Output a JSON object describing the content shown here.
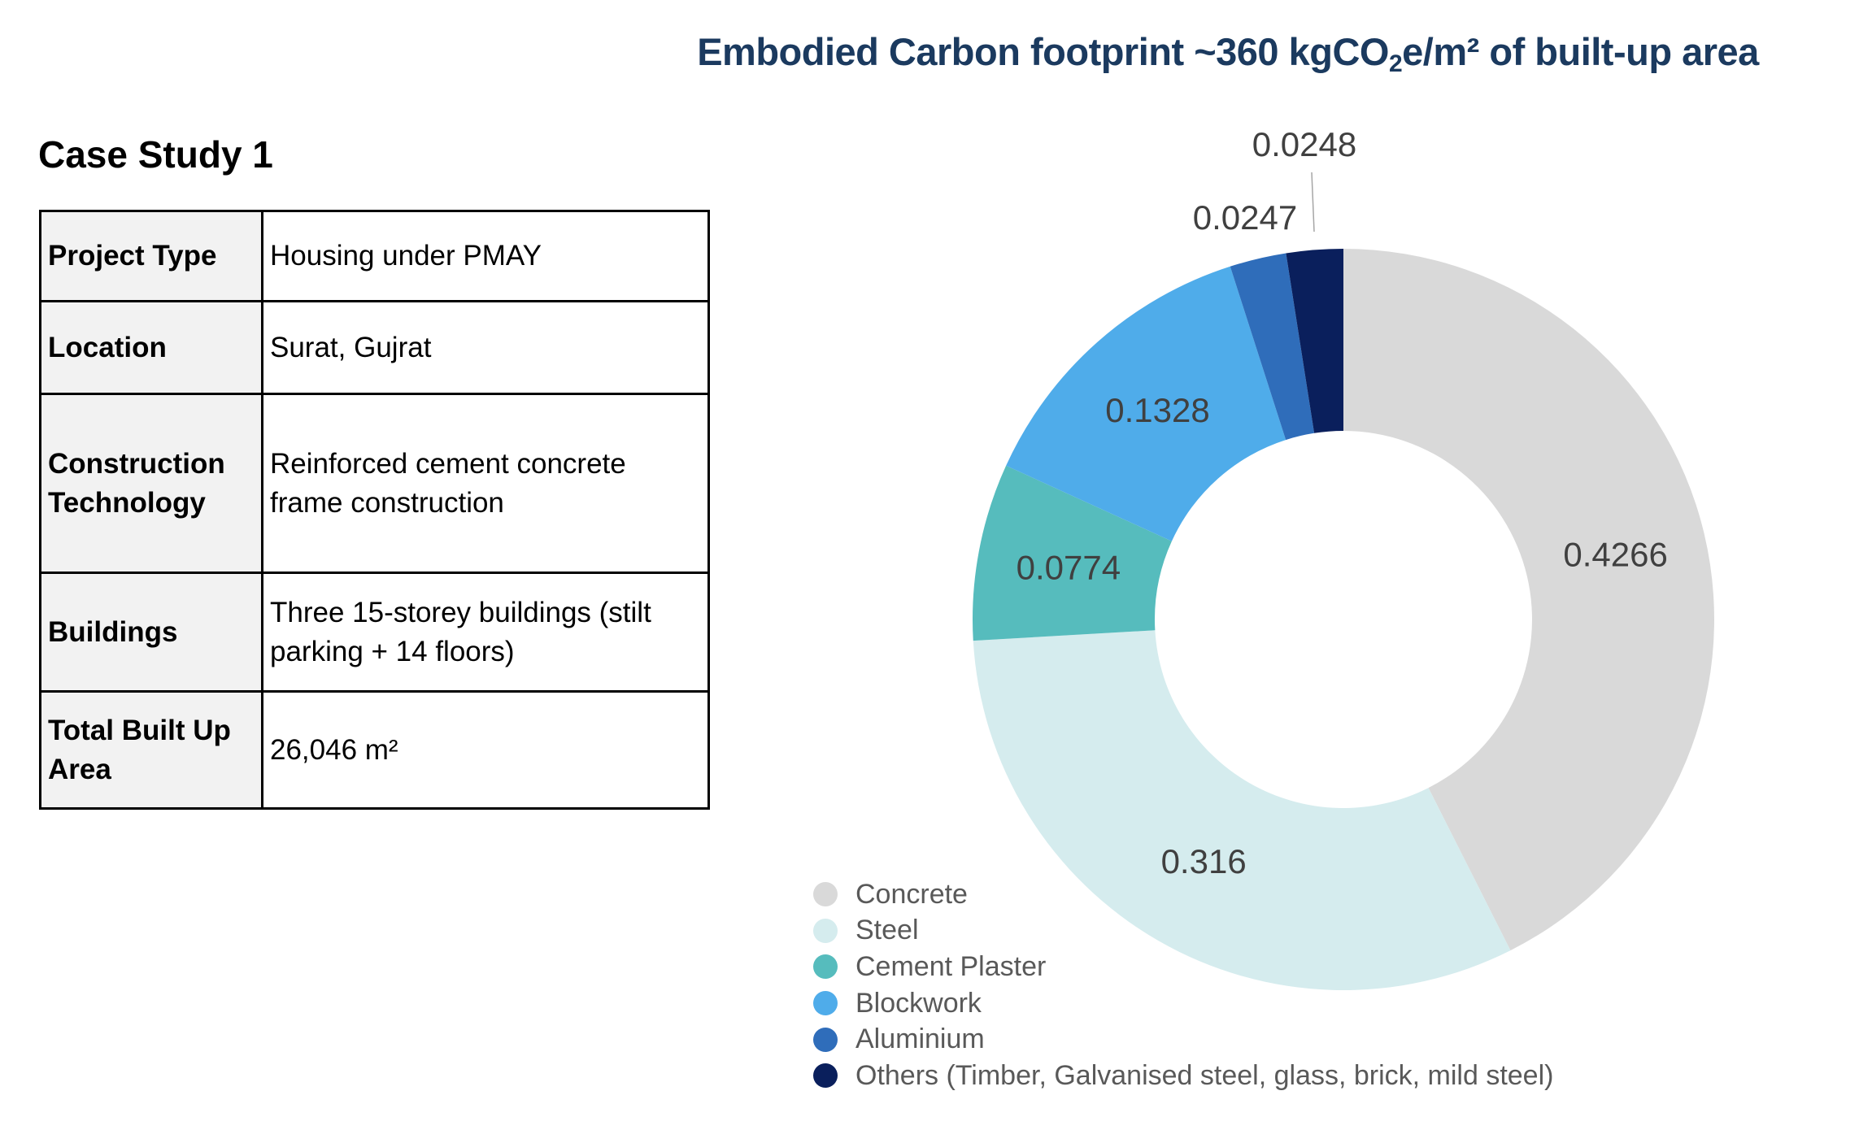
{
  "case_study": {
    "heading": "Case Study 1",
    "rows": [
      {
        "label": "Project Type",
        "value": "Housing under PMAY"
      },
      {
        "label": "Location",
        "value": "Surat, Gujrat"
      },
      {
        "label": "Construction Technology",
        "value": "Reinforced cement concrete frame construction"
      },
      {
        "label": "Buildings",
        "value": "Three 15-storey buildings (stilt parking + 14 floors)"
      },
      {
        "label": "Total Built Up Area",
        "value": "26,046 m²"
      }
    ]
  },
  "chart_data": {
    "type": "pie",
    "variant": "donut",
    "title_parts": [
      "Embodied Carbon footprint ~360 kgCO",
      "2",
      "e/m² of built-up area"
    ],
    "title": "Embodied Carbon footprint ~360 kgCO2e/m² of built-up area",
    "start_angle": "top, clockwise",
    "legend_position": "bottom-left",
    "categories": [
      "Concrete",
      "Steel",
      "Cement Plaster",
      "Blockwork",
      "Aluminium",
      "Others (Timber, Galvanised steel, glass, brick, mild steel)"
    ],
    "values": [
      0.4266,
      0.316,
      0.0774,
      0.1328,
      0.0247,
      0.0248
    ],
    "data_labels": [
      "0.4266",
      "0.316",
      "0.0774",
      "0.1328",
      "0.0247",
      "0.0248"
    ],
    "colors": [
      "#d9d9d9",
      "#d5ecee",
      "#56bcbd",
      "#4facea",
      "#2f6dba",
      "#0a1f5c"
    ]
  }
}
